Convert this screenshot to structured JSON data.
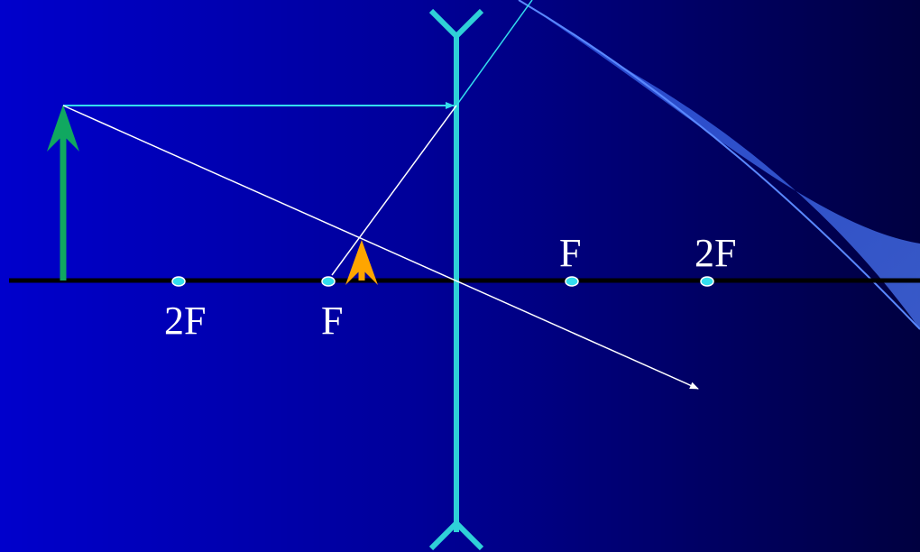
{
  "diagram": {
    "left_side_labels": {
      "two_f": "2F",
      "f": "F"
    },
    "right_side_labels": {
      "f": "F",
      "two_f": "2F"
    }
  },
  "colors": {
    "axis": "#000000",
    "lens": "#2fd0d8",
    "object_arrow": "#10a860",
    "image_arrow": "#ffa500",
    "parallel_ray": "#33ddee",
    "center_ray": "#ffffff",
    "focal_point": "#33ddee"
  }
}
